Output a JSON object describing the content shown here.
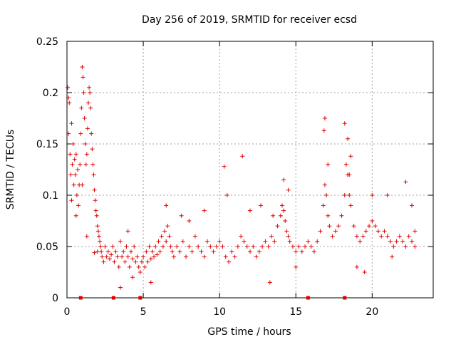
{
  "chart_data": {
    "type": "scatter",
    "title": "Day 256 of 2019, SRMTID for receiver ecsd",
    "xlabel": "GPS time / hours",
    "ylabel": "SRMTID / TECUs",
    "xlim": [
      0,
      24
    ],
    "ylim": [
      0,
      0.25
    ],
    "xticks": [
      0,
      5,
      10,
      15,
      20
    ],
    "xtick_labels": [
      "0",
      "5",
      "10",
      "15",
      "20"
    ],
    "yticks": [
      0,
      0.05,
      0.1,
      0.15,
      0.2,
      0.25
    ],
    "ytick_labels": [
      "0",
      "0.05",
      "0.1",
      "0.15",
      "0.2",
      "0.25"
    ],
    "grid": true,
    "marker": "+",
    "color": "#e00000",
    "series": [
      {
        "name": "SRMTID",
        "points": [
          [
            0.05,
            0.205
          ],
          [
            0.1,
            0.16
          ],
          [
            0.15,
            0.19
          ],
          [
            0.2,
            0.14
          ],
          [
            0.25,
            0.12
          ],
          [
            0.3,
            0.17
          ],
          [
            0.35,
            0.13
          ],
          [
            0.4,
            0.15
          ],
          [
            0.45,
            0.11
          ],
          [
            0.5,
            0.135
          ],
          [
            0.55,
            0.12
          ],
          [
            0.6,
            0.14
          ],
          [
            0.65,
            0.1
          ],
          [
            0.7,
            0.125
          ],
          [
            0.75,
            0.09
          ],
          [
            0.8,
            0.11
          ],
          [
            0.85,
            0.13
          ],
          [
            0.9,
            0.16
          ],
          [
            0.95,
            0.185
          ],
          [
            1.0,
            0.225
          ],
          [
            1.05,
            0.215
          ],
          [
            1.1,
            0.2
          ],
          [
            1.15,
            0.175
          ],
          [
            1.2,
            0.15
          ],
          [
            1.25,
            0.13
          ],
          [
            1.3,
            0.14
          ],
          [
            1.35,
            0.165
          ],
          [
            1.4,
            0.19
          ],
          [
            1.45,
            0.205
          ],
          [
            1.5,
            0.2
          ],
          [
            1.55,
            0.185
          ],
          [
            1.6,
            0.16
          ],
          [
            1.65,
            0.145
          ],
          [
            1.7,
            0.13
          ],
          [
            1.75,
            0.12
          ],
          [
            1.8,
            0.105
          ],
          [
            1.85,
            0.095
          ],
          [
            1.9,
            0.085
          ],
          [
            1.95,
            0.08
          ],
          [
            2.0,
            0.07
          ],
          [
            2.05,
            0.065
          ],
          [
            2.1,
            0.06
          ],
          [
            2.15,
            0.055
          ],
          [
            2.2,
            0.05
          ],
          [
            2.25,
            0.045
          ],
          [
            2.3,
            0.04
          ],
          [
            2.4,
            0.035
          ],
          [
            2.5,
            0.05
          ],
          [
            2.6,
            0.04
          ],
          [
            2.7,
            0.045
          ],
          [
            2.8,
            0.038
          ],
          [
            2.9,
            0.042
          ],
          [
            3.0,
            0.05
          ],
          [
            3.1,
            0.035
          ],
          [
            3.2,
            0.045
          ],
          [
            3.3,
            0.04
          ],
          [
            3.4,
            0.03
          ],
          [
            3.5,
            0.055
          ],
          [
            3.6,
            0.04
          ],
          [
            3.7,
            0.045
          ],
          [
            3.8,
            0.035
          ],
          [
            3.9,
            0.05
          ],
          [
            4.0,
            0.04
          ],
          [
            4.1,
            0.03
          ],
          [
            4.2,
            0.045
          ],
          [
            4.3,
            0.038
          ],
          [
            4.4,
            0.05
          ],
          [
            4.5,
            0.035
          ],
          [
            4.6,
            0.04
          ],
          [
            4.7,
            0.03
          ],
          [
            4.8,
            0.025
          ],
          [
            4.9,
            0.035
          ],
          [
            5.0,
            0.04
          ],
          [
            5.1,
            0.03
          ],
          [
            5.2,
            0.045
          ],
          [
            5.3,
            0.035
          ],
          [
            5.4,
            0.05
          ],
          [
            5.5,
            0.038
          ],
          [
            5.6,
            0.045
          ],
          [
            5.7,
            0.04
          ],
          [
            5.8,
            0.05
          ],
          [
            5.9,
            0.042
          ],
          [
            6.0,
            0.055
          ],
          [
            6.1,
            0.045
          ],
          [
            6.2,
            0.06
          ],
          [
            6.3,
            0.05
          ],
          [
            6.4,
            0.065
          ],
          [
            6.5,
            0.055
          ],
          [
            6.6,
            0.07
          ],
          [
            6.7,
            0.06
          ],
          [
            6.8,
            0.05
          ],
          [
            6.9,
            0.045
          ],
          [
            7.0,
            0.04
          ],
          [
            7.2,
            0.05
          ],
          [
            7.4,
            0.045
          ],
          [
            7.6,
            0.055
          ],
          [
            7.8,
            0.04
          ],
          [
            8.0,
            0.05
          ],
          [
            8.2,
            0.045
          ],
          [
            8.4,
            0.06
          ],
          [
            8.6,
            0.05
          ],
          [
            8.8,
            0.045
          ],
          [
            9.0,
            0.04
          ],
          [
            9.2,
            0.055
          ],
          [
            9.4,
            0.05
          ],
          [
            9.6,
            0.045
          ],
          [
            9.8,
            0.05
          ],
          [
            10.0,
            0.055
          ],
          [
            10.2,
            0.05
          ],
          [
            10.4,
            0.04
          ],
          [
            10.6,
            0.035
          ],
          [
            10.8,
            0.045
          ],
          [
            11.0,
            0.04
          ],
          [
            11.2,
            0.05
          ],
          [
            11.4,
            0.06
          ],
          [
            11.6,
            0.055
          ],
          [
            11.8,
            0.05
          ],
          [
            12.0,
            0.045
          ],
          [
            12.2,
            0.05
          ],
          [
            12.4,
            0.04
          ],
          [
            12.6,
            0.045
          ],
          [
            12.8,
            0.05
          ],
          [
            13.0,
            0.055
          ],
          [
            13.2,
            0.05
          ],
          [
            13.4,
            0.06
          ],
          [
            13.6,
            0.055
          ],
          [
            13.8,
            0.07
          ],
          [
            14.0,
            0.08
          ],
          [
            14.1,
            0.09
          ],
          [
            14.2,
            0.085
          ],
          [
            14.3,
            0.075
          ],
          [
            14.4,
            0.065
          ],
          [
            14.5,
            0.06
          ],
          [
            14.6,
            0.055
          ],
          [
            14.8,
            0.05
          ],
          [
            15.0,
            0.045
          ],
          [
            15.2,
            0.05
          ],
          [
            15.4,
            0.045
          ],
          [
            15.6,
            0.05
          ],
          [
            15.8,
            0.055
          ],
          [
            16.0,
            0.05
          ],
          [
            16.2,
            0.045
          ],
          [
            16.4,
            0.055
          ],
          [
            16.6,
            0.065
          ],
          [
            16.8,
            0.09
          ],
          [
            16.9,
            0.11
          ],
          [
            17.0,
            0.1
          ],
          [
            17.1,
            0.08
          ],
          [
            17.2,
            0.07
          ],
          [
            17.4,
            0.06
          ],
          [
            17.6,
            0.065
          ],
          [
            17.8,
            0.07
          ],
          [
            18.0,
            0.08
          ],
          [
            18.2,
            0.1
          ],
          [
            18.3,
            0.13
          ],
          [
            18.4,
            0.12
          ],
          [
            18.5,
            0.1
          ],
          [
            18.6,
            0.09
          ],
          [
            18.8,
            0.07
          ],
          [
            19.0,
            0.06
          ],
          [
            19.2,
            0.055
          ],
          [
            19.4,
            0.06
          ],
          [
            19.6,
            0.065
          ],
          [
            19.8,
            0.07
          ],
          [
            20.0,
            0.075
          ],
          [
            20.2,
            0.07
          ],
          [
            20.4,
            0.065
          ],
          [
            20.6,
            0.06
          ],
          [
            20.8,
            0.065
          ],
          [
            21.0,
            0.06
          ],
          [
            21.2,
            0.055
          ],
          [
            21.4,
            0.05
          ],
          [
            21.6,
            0.055
          ],
          [
            21.8,
            0.06
          ],
          [
            22.0,
            0.055
          ],
          [
            22.2,
            0.05
          ],
          [
            22.4,
            0.06
          ],
          [
            22.6,
            0.055
          ],
          [
            22.8,
            0.05
          ],
          [
            0.3,
            0.095
          ],
          [
            0.6,
            0.08
          ],
          [
            1.0,
            0.11
          ],
          [
            1.3,
            0.06
          ],
          [
            2.0,
            0.045
          ],
          [
            3.5,
            0.01
          ],
          [
            4.0,
            0.065
          ],
          [
            5.5,
            0.015
          ],
          [
            6.5,
            0.09
          ],
          [
            7.5,
            0.08
          ],
          [
            8.0,
            0.075
          ],
          [
            9.0,
            0.085
          ],
          [
            10.3,
            0.128
          ],
          [
            10.5,
            0.1
          ],
          [
            11.5,
            0.138
          ],
          [
            12.0,
            0.085
          ],
          [
            13.5,
            0.08
          ],
          [
            13.3,
            0.015
          ],
          [
            14.2,
            0.115
          ],
          [
            14.5,
            0.105
          ],
          [
            16.9,
            0.175
          ],
          [
            16.85,
            0.163
          ],
          [
            17.1,
            0.13
          ],
          [
            18.2,
            0.17
          ],
          [
            18.4,
            0.155
          ],
          [
            18.6,
            0.138
          ],
          [
            18.5,
            0.12
          ],
          [
            19.0,
            0.03
          ],
          [
            20.0,
            0.1
          ],
          [
            21.0,
            0.1
          ],
          [
            21.3,
            0.04
          ],
          [
            22.2,
            0.113
          ],
          [
            22.6,
            0.09
          ],
          [
            22.8,
            0.065
          ],
          [
            0.1,
            0.195
          ],
          [
            1.8,
            0.044
          ],
          [
            4.3,
            0.02
          ],
          [
            12.7,
            0.09
          ],
          [
            15.0,
            0.03
          ],
          [
            19.5,
            0.025
          ]
        ]
      }
    ],
    "baseline_markers_x": [
      0.9,
      3.05,
      4.8,
      15.8,
      18.2
    ],
    "baseline_markers_y": 0
  }
}
